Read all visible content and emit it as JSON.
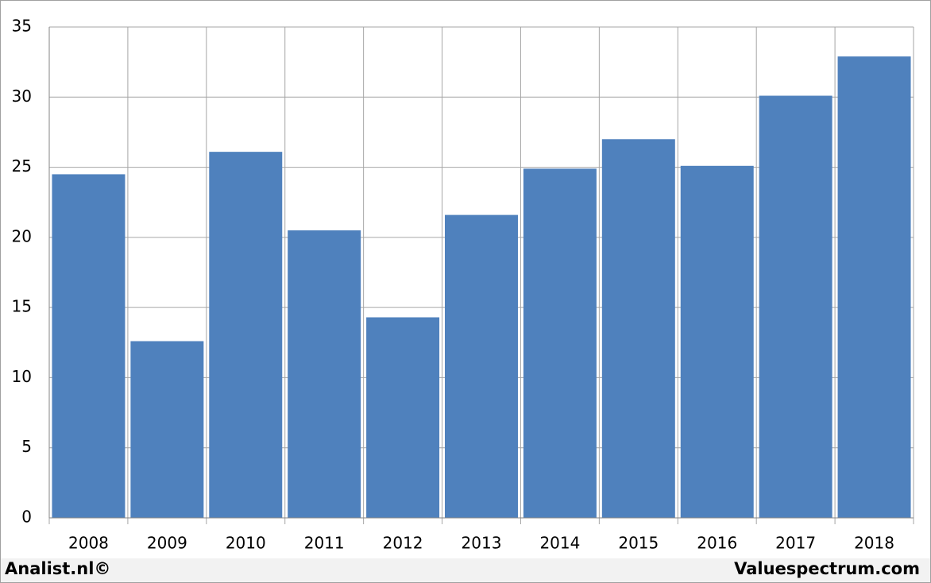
{
  "chart_data": {
    "type": "bar",
    "categories": [
      "2008",
      "2009",
      "2010",
      "2011",
      "2012",
      "2013",
      "2014",
      "2015",
      "2016",
      "2017",
      "2018"
    ],
    "values": [
      24.5,
      12.6,
      26.1,
      20.5,
      14.3,
      21.6,
      24.9,
      27.0,
      25.1,
      30.1,
      32.9
    ],
    "color": "#4f81bd",
    "ylim": [
      0,
      35
    ],
    "yticks": [
      0,
      5,
      10,
      15,
      20,
      25,
      30,
      35
    ],
    "grid": true,
    "credits": [
      "Analist.nl©",
      "Valuespectrum.com"
    ]
  }
}
